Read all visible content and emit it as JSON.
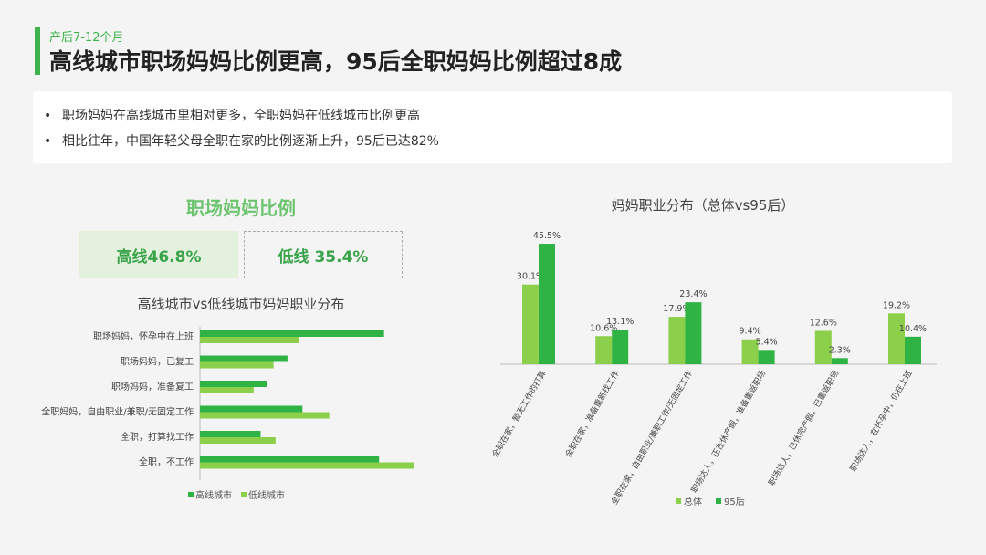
{
  "header": {
    "subtitle": "产后7-12个月",
    "title": "高线城市职场妈妈比例更高，95后全职妈妈比例超过8成"
  },
  "summary": {
    "bullets": [
      "职场妈妈在高线城市里相对更多，全职妈妈在低线城市比例更高",
      "相比往年，中国年轻父母全职在家的比例逐渐上升，95后已达82%"
    ]
  },
  "left_panel": {
    "title": "职场妈妈比例",
    "high_box": "高线46.8%",
    "low_box": "低线 35.4%"
  },
  "colors": {
    "dark_green": "#2fb344",
    "light_green": "#8ccf4a",
    "accent": "#3cb44b"
  },
  "chart_data": [
    {
      "type": "bar",
      "orientation": "horizontal",
      "title": "高线城市vs低线城市妈妈职业分布",
      "categories": [
        "职场妈妈，怀孕中在上班",
        "职场妈妈，已复工",
        "职场妈妈，准备复工",
        "全职妈妈，自由职业/兼职/无固定工作",
        "全职，打算找工作",
        "全职，不工作"
      ],
      "series": [
        {
          "name": "高线城市",
          "values": [
            18.5,
            8.8,
            6.7,
            10.3,
            6.1,
            18.0
          ]
        },
        {
          "name": "低线城市",
          "values": [
            10.0,
            7.4,
            5.4,
            13.0,
            7.6,
            21.5
          ]
        }
      ],
      "legend": "bottom",
      "grid": false
    },
    {
      "type": "bar",
      "title": "妈妈职业分布（总体vs95后）",
      "categories": [
        "全职在家，暂无工作的打算",
        "全职在家，准备重新找工作",
        "全职在家，自由职业/兼职工作/无固定工作",
        "职场达人，正在休产假，准备重返职场",
        "职场达人，已休完产假，已重返职场",
        "职场达人，在怀孕中，仍在上班"
      ],
      "series": [
        {
          "name": "总体",
          "values": [
            30.1,
            10.6,
            17.9,
            9.4,
            12.6,
            19.2
          ],
          "labels": [
            "30.1%",
            "10.6%",
            "17.9%",
            "9.4%",
            "12.6%",
            "19.2%"
          ]
        },
        {
          "name": "95后",
          "values": [
            45.5,
            13.1,
            23.4,
            5.4,
            2.3,
            10.4
          ],
          "labels": [
            "45.5%",
            "13.1%",
            "23.4%",
            "5.4%",
            "2.3%",
            "10.4%"
          ]
        }
      ],
      "legend": "bottom",
      "grid": false
    }
  ]
}
